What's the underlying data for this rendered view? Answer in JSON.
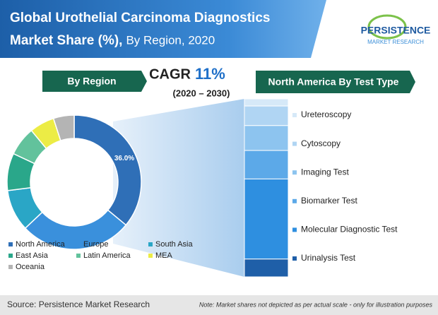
{
  "header": {
    "title": "Global Urothelial Carcinoma Diagnostics Market Share (%),",
    "subtitle": "By Region, 2020"
  },
  "logo": {
    "name": "PERSISTENCE",
    "tagline": "MARKET RESEARCH"
  },
  "left_heading": "By Region",
  "cagr": {
    "label": "CAGR",
    "value": "11%",
    "period": "(2020 – 2030)"
  },
  "right_heading": "North America By Test Type",
  "footer": {
    "source": "Source: Persistence Market Research",
    "note": "Note: Market shares not depicted as per actual scale - only for illustration purposes"
  },
  "chart_data": [
    {
      "type": "pie",
      "categories": [
        "North America",
        "Europe",
        "South Asia",
        "East Asia",
        "Latin America",
        "MEA",
        "Oceania"
      ],
      "values": [
        36,
        27,
        10,
        9,
        7,
        6,
        5
      ],
      "value_labels": [
        "36.0%",
        null,
        null,
        null,
        null,
        null,
        null
      ],
      "colors": [
        "#2f6fb7",
        "#3a90dc",
        "#2aa6c6",
        "#2aa78a",
        "#62c29c",
        "#ecec45",
        "#b4b4b4"
      ]
    },
    {
      "type": "stacked-bar",
      "categories": [
        "Ureteroscopy",
        "Cytoscopy",
        "Imaging Test",
        "Biomarker Test",
        "Molecular Diagnostic Test",
        "Urinalysis Test"
      ],
      "values": [
        4,
        11,
        14,
        16,
        45,
        10
      ],
      "colors": [
        "#d6e9f8",
        "#b0d5f3",
        "#8dc4ef",
        "#5ca9e8",
        "#2e8fe0",
        "#1f5fa8"
      ]
    }
  ]
}
